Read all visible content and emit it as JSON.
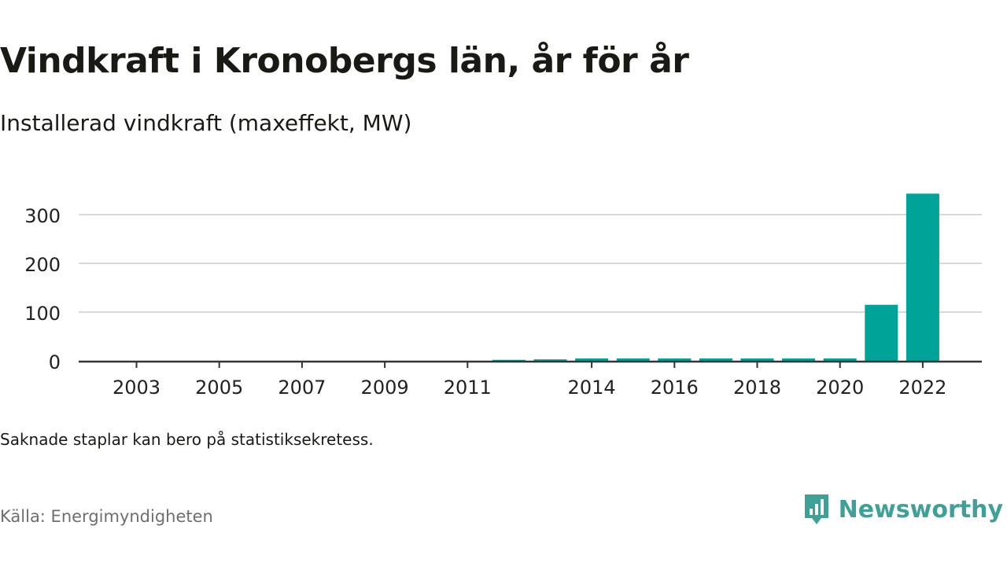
{
  "title": "Vindkraft i Kronobergs län, år för år",
  "subtitle": "Installerad vindkraft (maxeffekt, MW)",
  "note": "Saknade staplar kan bero på statistiksekretess.",
  "source": "Källa: Energimyndigheten",
  "brand": "Newsworthy",
  "colors": {
    "bar": "#00a398",
    "grid": "#d9d9d9",
    "axis": "#333333",
    "brand": "#3fa097"
  },
  "chart_data": {
    "type": "bar",
    "categories": [
      "2003",
      "2004",
      "2005",
      "2006",
      "2007",
      "2008",
      "2009",
      "2010",
      "2011",
      "2012",
      "2013",
      "2014",
      "2015",
      "2016",
      "2017",
      "2018",
      "2019",
      "2020",
      "2021",
      "2022"
    ],
    "x_tick_labels": [
      "2003",
      "2005",
      "2007",
      "2009",
      "2011",
      "2014",
      "2016",
      "2018",
      "2020",
      "2022"
    ],
    "values": [
      0,
      0,
      0,
      0,
      0,
      0,
      0,
      0,
      0,
      2,
      3,
      5,
      5,
      5,
      5,
      5,
      5,
      5,
      115,
      343
    ],
    "ylim": [
      0,
      350
    ],
    "yticks": [
      0,
      100,
      200,
      300
    ],
    "grid": true
  }
}
